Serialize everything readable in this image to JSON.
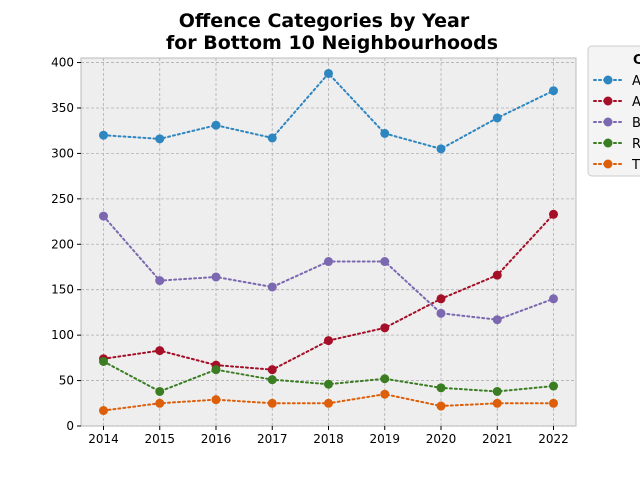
{
  "chart_data": {
    "type": "line",
    "title_lines": [
      "Offence Categories by Year",
      "for Bottom 10 Neighbourhoods"
    ],
    "xlabel": "",
    "ylabel": "",
    "x": [
      2014,
      2015,
      2016,
      2017,
      2018,
      2019,
      2020,
      2021,
      2022
    ],
    "xlim": [
      2013.6,
      2022.4
    ],
    "ylim": [
      0,
      405
    ],
    "yticks": [
      0,
      50,
      100,
      150,
      200,
      250,
      300,
      350,
      400
    ],
    "grid": true,
    "legend": {
      "title": "C",
      "placement": "outside-top-right"
    },
    "series": [
      {
        "name": "A",
        "color": "#2e86c1",
        "values": [
          320,
          316,
          331,
          317,
          388,
          322,
          305,
          339,
          369
        ]
      },
      {
        "name": "A",
        "color": "#a50f27",
        "values": [
          74,
          83,
          67,
          62,
          94,
          108,
          140,
          166,
          233
        ]
      },
      {
        "name": "B",
        "color": "#7b68b0",
        "values": [
          231,
          160,
          164,
          153,
          181,
          181,
          124,
          117,
          140
        ]
      },
      {
        "name": "R",
        "color": "#3a7d22",
        "values": [
          71,
          38,
          62,
          51,
          46,
          52,
          42,
          38,
          44
        ]
      },
      {
        "name": "T",
        "color": "#dd5f0a",
        "values": [
          17,
          25,
          29,
          25,
          25,
          35,
          22,
          25,
          25
        ]
      }
    ]
  }
}
